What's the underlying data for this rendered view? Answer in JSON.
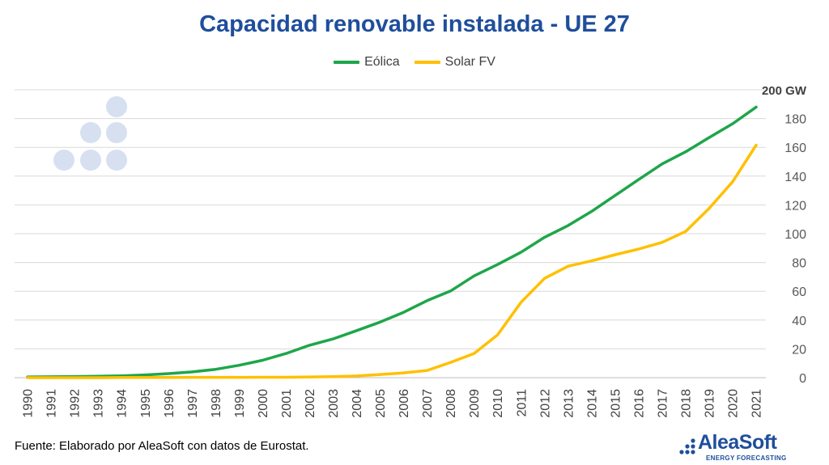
{
  "chart_data": {
    "type": "line",
    "title": "Capacidad renovable instalada - UE 27",
    "x": [
      "1990",
      "1991",
      "1992",
      "1993",
      "1994",
      "1995",
      "1996",
      "1997",
      "1998",
      "1999",
      "2000",
      "2001",
      "2002",
      "2003",
      "2004",
      "2005",
      "2006",
      "2007",
      "2008",
      "2009",
      "2010",
      "2011",
      "2012",
      "2013",
      "2014",
      "2015",
      "2016",
      "2017",
      "2018",
      "2019",
      "2020",
      "2021"
    ],
    "series": [
      {
        "name": "Eólica",
        "color": "#1ea64a",
        "values": [
          0.5,
          0.6,
          0.8,
          1.0,
          1.3,
          1.9,
          2.8,
          4.0,
          5.8,
          8.6,
          12.1,
          16.8,
          22.5,
          26.9,
          32.7,
          38.6,
          45.4,
          53.5,
          60.2,
          70.7,
          78.6,
          87.2,
          97.5,
          105.7,
          115.5,
          126.6,
          137.6,
          148.5,
          156.9,
          166.8,
          176.4,
          188.0
        ]
      },
      {
        "name": "Solar FV",
        "color": "#ffc000",
        "values": [
          0,
          0,
          0,
          0,
          0.1,
          0.1,
          0.1,
          0.2,
          0.2,
          0.2,
          0.3,
          0.3,
          0.5,
          0.7,
          1.2,
          2.2,
          3.3,
          5.0,
          10.6,
          16.8,
          29.7,
          52.4,
          69.0,
          77.4,
          81.1,
          85.4,
          89.3,
          94.0,
          101.6,
          117.6,
          136.1,
          161.5
        ]
      }
    ],
    "yticks": [
      "0",
      "20",
      "40",
      "60",
      "80",
      "100",
      "120",
      "140",
      "160",
      "180",
      "200 GW"
    ],
    "ylim": [
      0,
      200
    ],
    "grid": true,
    "legend_position": "top-center"
  },
  "footer": {
    "source": "Fuente: Elaborado por AleaSoft con datos de Eurostat.",
    "logo_name": "AleaSoft",
    "logo_sub": "ENERGY FORECASTING"
  }
}
